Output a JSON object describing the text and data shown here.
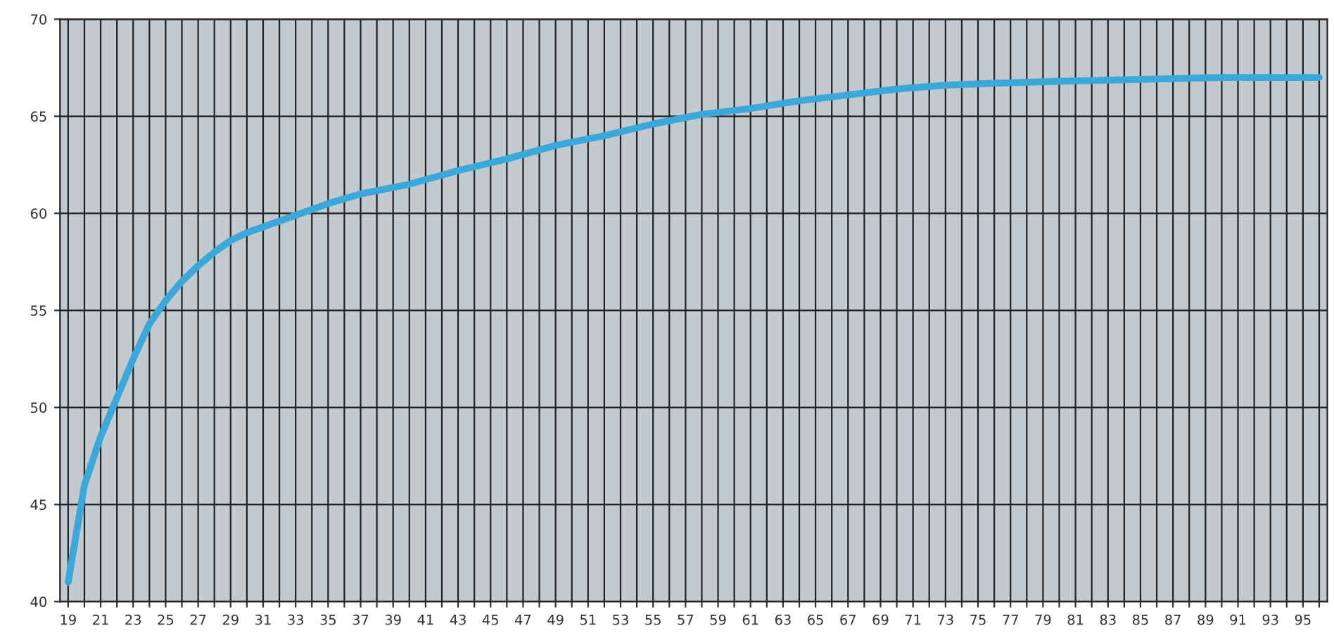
{
  "chart_data": {
    "type": "line",
    "x": [
      19,
      20,
      21,
      22,
      23,
      24,
      25,
      26,
      27,
      28,
      29,
      30,
      31,
      32,
      33,
      34,
      35,
      37,
      40,
      43,
      46,
      49,
      52,
      55,
      58,
      61,
      64,
      67,
      70,
      73,
      76,
      80,
      85,
      90,
      96
    ],
    "series": [
      {
        "color": "#3aa8d8",
        "values": [
          41,
          46,
          48.5,
          50.5,
          52.5,
          54.3,
          55.5,
          56.5,
          57.3,
          58,
          58.6,
          59,
          59.3,
          59.6,
          59.9,
          60.2,
          60.5,
          61,
          61.5,
          62.2,
          62.8,
          63.5,
          64,
          64.6,
          65.1,
          65.4,
          65.8,
          66.1,
          66.4,
          66.6,
          66.7,
          66.8,
          66.9,
          67,
          67
        ]
      }
    ],
    "xlim": [
      18.5,
      96.5
    ],
    "xticks": [
      19,
      {
        "value": 20,
        "label": null
      },
      21,
      {
        "value": 22,
        "label": null
      },
      23,
      {
        "value": 24,
        "label": null
      },
      25,
      {
        "value": 26,
        "label": null
      },
      27,
      {
        "value": 28,
        "label": null
      },
      29,
      {
        "value": 30,
        "label": null
      },
      31,
      {
        "value": 32,
        "label": null
      },
      33,
      {
        "value": 34,
        "label": null
      },
      35,
      {
        "value": 36,
        "label": null
      },
      37,
      {
        "value": 38,
        "label": null
      },
      39,
      {
        "value": 40,
        "label": null
      },
      41,
      {
        "value": 42,
        "label": null
      },
      43,
      {
        "value": 44,
        "label": null
      },
      45,
      {
        "value": 46,
        "label": null
      },
      47,
      {
        "value": 48,
        "label": null
      },
      49,
      {
        "value": 50,
        "label": null
      },
      51,
      {
        "value": 52,
        "label": null
      },
      53,
      {
        "value": 54,
        "label": null
      },
      55,
      {
        "value": 56,
        "label": null
      },
      57,
      {
        "value": 58,
        "label": null
      },
      59,
      {
        "value": 60,
        "label": null
      },
      61,
      {
        "value": 62,
        "label": null
      },
      63,
      {
        "value": 64,
        "label": null
      },
      65,
      {
        "value": 66,
        "label": null
      },
      67,
      {
        "value": 68,
        "label": null
      },
      69,
      {
        "value": 70,
        "label": null
      },
      71,
      {
        "value": 72,
        "label": null
      },
      73,
      {
        "value": 74,
        "label": null
      },
      75,
      {
        "value": 76,
        "label": null
      },
      77,
      {
        "value": 78,
        "label": null
      },
      79,
      {
        "value": 80,
        "label": null
      },
      81,
      {
        "value": 82,
        "label": null
      },
      83,
      {
        "value": 84,
        "label": null
      },
      85,
      {
        "value": 86,
        "label": null
      },
      87,
      {
        "value": 88,
        "label": null
      },
      89,
      {
        "value": 90,
        "label": null
      },
      91,
      {
        "value": 92,
        "label": null
      },
      93,
      {
        "value": 94,
        "label": null
      },
      95,
      {
        "value": 96,
        "label": null
      }
    ],
    "ylim": [
      40,
      70
    ],
    "yticks": [
      40,
      45,
      50,
      55,
      60,
      65,
      70
    ],
    "grid": true,
    "marker": "none",
    "line_style": "solid"
  }
}
